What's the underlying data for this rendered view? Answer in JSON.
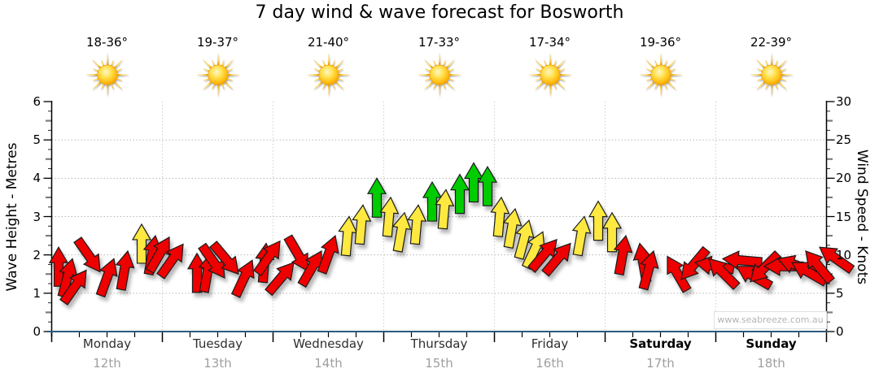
{
  "page": {
    "title": "7 day wind & wave forecast for Bosworth",
    "watermark": "www.seabreeze.com.au"
  },
  "left_axis": {
    "title": "Wave Height - Metres",
    "min": 0,
    "max": 6,
    "major_ticks": [
      0,
      1,
      2,
      3,
      4,
      5,
      6
    ]
  },
  "right_axis": {
    "title": "Wind Speed - Knots",
    "min": 0,
    "max": 30,
    "major_ticks": [
      0,
      5,
      10,
      15,
      20,
      25,
      30
    ]
  },
  "days": [
    {
      "name": "Monday",
      "date": "12th",
      "temperature": "18-36°",
      "weather_icon": "sun-icon",
      "bold": false
    },
    {
      "name": "Tuesday",
      "date": "13th",
      "temperature": "19-37°",
      "weather_icon": "sun-icon",
      "bold": false
    },
    {
      "name": "Wednesday",
      "date": "14th",
      "temperature": "21-40°",
      "weather_icon": "sun-icon",
      "bold": false
    },
    {
      "name": "Thursday",
      "date": "15th",
      "temperature": "17-33°",
      "weather_icon": "sun-icon",
      "bold": false
    },
    {
      "name": "Friday",
      "date": "16th",
      "temperature": "17-34°",
      "weather_icon": "sun-icon",
      "bold": false
    },
    {
      "name": "Saturday",
      "date": "17th",
      "temperature": "19-36°",
      "weather_icon": "sun-icon",
      "bold": true
    },
    {
      "name": "Sunday",
      "date": "18th",
      "temperature": "22-39°",
      "weather_icon": "sun-icon",
      "bold": true
    }
  ],
  "chart_data": {
    "type": "wind-arrow-forecast",
    "title": "7 day wind & wave forecast for Bosworth",
    "y_left": {
      "label": "Wave Height - Metres",
      "range": [
        0,
        6
      ],
      "gridlines": [
        1,
        2,
        3,
        4,
        5
      ]
    },
    "y_right": {
      "label": "Wind Speed - Knots",
      "range": [
        0,
        30
      ],
      "gridlines": [
        5,
        10,
        15,
        20,
        25
      ]
    },
    "x": {
      "categories": [
        "Monday 12th",
        "Tuesday 13th",
        "Wednesday 14th",
        "Thursday 15th",
        "Friday 16th",
        "Saturday 17th",
        "Sunday 18th"
      ],
      "points_per_day": 8,
      "grid": "dotted vertical line at each day boundary"
    },
    "arrow_colors": {
      "red": "#EE0000",
      "yellow": "#FFE93F",
      "green": "#00CC00"
    },
    "dir_unit": "degrees clockwise from straight up",
    "value_unit": "knots (arrow tip = wind speed on right axis)",
    "series": [
      {
        "day": "Monday",
        "points": [
          {
            "kts": 11,
            "dir": 0,
            "color": "red"
          },
          {
            "kts": 9.5,
            "dir": 15,
            "color": "red"
          },
          {
            "kts": 8,
            "dir": 35,
            "color": "red"
          },
          {
            "kts": 7.8,
            "dir": 145,
            "color": "red"
          },
          {
            "kts": 9.5,
            "dir": 20,
            "color": "red"
          },
          {
            "kts": 10.5,
            "dir": 10,
            "color": "red"
          },
          {
            "kts": 14,
            "dir": 0,
            "color": "yellow"
          },
          {
            "kts": 12.5,
            "dir": 10,
            "color": "red"
          }
        ]
      },
      {
        "day": "Tuesday",
        "points": [
          {
            "kts": 12.3,
            "dir": 30,
            "color": "red"
          },
          {
            "kts": 11.4,
            "dir": 35,
            "color": "red"
          },
          {
            "kts": 10.2,
            "dir": 0,
            "color": "red"
          },
          {
            "kts": 10.2,
            "dir": 10,
            "color": "red"
          },
          {
            "kts": 7,
            "dir": 145,
            "color": "red"
          },
          {
            "kts": 7.5,
            "dir": 140,
            "color": "red"
          },
          {
            "kts": 9.3,
            "dir": 25,
            "color": "red"
          },
          {
            "kts": 11.5,
            "dir": 5,
            "color": "red"
          }
        ]
      },
      {
        "day": "Wednesday",
        "points": [
          {
            "kts": 11.8,
            "dir": 35,
            "color": "red"
          },
          {
            "kts": 9,
            "dir": 40,
            "color": "red"
          },
          {
            "kts": 7.9,
            "dir": 150,
            "color": "red"
          },
          {
            "kts": 10.5,
            "dir": 30,
            "color": "red"
          },
          {
            "kts": 12.5,
            "dir": 20,
            "color": "red"
          },
          {
            "kts": 15,
            "dir": 5,
            "color": "yellow"
          },
          {
            "kts": 16.5,
            "dir": 5,
            "color": "yellow"
          },
          {
            "kts": 20,
            "dir": 0,
            "color": "green"
          }
        ]
      },
      {
        "day": "Thursday",
        "points": [
          {
            "kts": 17.5,
            "dir": 5,
            "color": "yellow"
          },
          {
            "kts": 15.5,
            "dir": 10,
            "color": "yellow"
          },
          {
            "kts": 16.5,
            "dir": 5,
            "color": "yellow"
          },
          {
            "kts": 19.5,
            "dir": 0,
            "color": "green"
          },
          {
            "kts": 18.5,
            "dir": 5,
            "color": "yellow"
          },
          {
            "kts": 20.5,
            "dir": 0,
            "color": "green"
          },
          {
            "kts": 22,
            "dir": 0,
            "color": "green"
          },
          {
            "kts": 21.5,
            "dir": 0,
            "color": "green"
          }
        ]
      },
      {
        "day": "Friday",
        "points": [
          {
            "kts": 17.5,
            "dir": 5,
            "color": "yellow"
          },
          {
            "kts": 16,
            "dir": 10,
            "color": "yellow"
          },
          {
            "kts": 14.5,
            "dir": 15,
            "color": "yellow"
          },
          {
            "kts": 13,
            "dir": 25,
            "color": "yellow"
          },
          {
            "kts": 12,
            "dir": 40,
            "color": "red"
          },
          {
            "kts": 11.5,
            "dir": 40,
            "color": "red"
          },
          {
            "kts": 15,
            "dir": 10,
            "color": "yellow"
          },
          {
            "kts": 17,
            "dir": 0,
            "color": "yellow"
          }
        ]
      },
      {
        "day": "Saturday",
        "points": [
          {
            "kts": 15.5,
            "dir": 0,
            "color": "yellow"
          },
          {
            "kts": 12.5,
            "dir": 10,
            "color": "red"
          },
          {
            "kts": 11.5,
            "dir": -10,
            "color": "red"
          },
          {
            "kts": 10.5,
            "dir": 15,
            "color": "red"
          },
          {
            "kts": 9.8,
            "dir": -30,
            "color": "red"
          },
          {
            "kts": 6.8,
            "dir": -140,
            "color": "red"
          },
          {
            "kts": 9,
            "dir": -80,
            "color": "red"
          },
          {
            "kts": 9.5,
            "dir": -45,
            "color": "red"
          }
        ]
      },
      {
        "day": "Sunday",
        "points": [
          {
            "kts": 9.5,
            "dir": -85,
            "color": "red"
          },
          {
            "kts": 8.5,
            "dir": -60,
            "color": "red"
          },
          {
            "kts": 6.5,
            "dir": -135,
            "color": "red"
          },
          {
            "kts": 8.5,
            "dir": -90,
            "color": "red"
          },
          {
            "kts": 9.5,
            "dir": -70,
            "color": "red"
          },
          {
            "kts": 9,
            "dir": -60,
            "color": "red"
          },
          {
            "kts": 10.5,
            "dir": -40,
            "color": "red"
          },
          {
            "kts": 11,
            "dir": -55,
            "color": "red"
          }
        ]
      }
    ]
  },
  "colors": {
    "red_arrow": "#EE0000",
    "yellow_arrow": "#FFE93F",
    "green_arrow": "#00CC00",
    "axis_line": "#000000",
    "baseline": "#2E5A7C",
    "gridline": "#b8b8b8",
    "day_gridline": "#cfcfcf",
    "date_text": "#9f9f9f",
    "watermark_text": "#b4b4b4"
  }
}
